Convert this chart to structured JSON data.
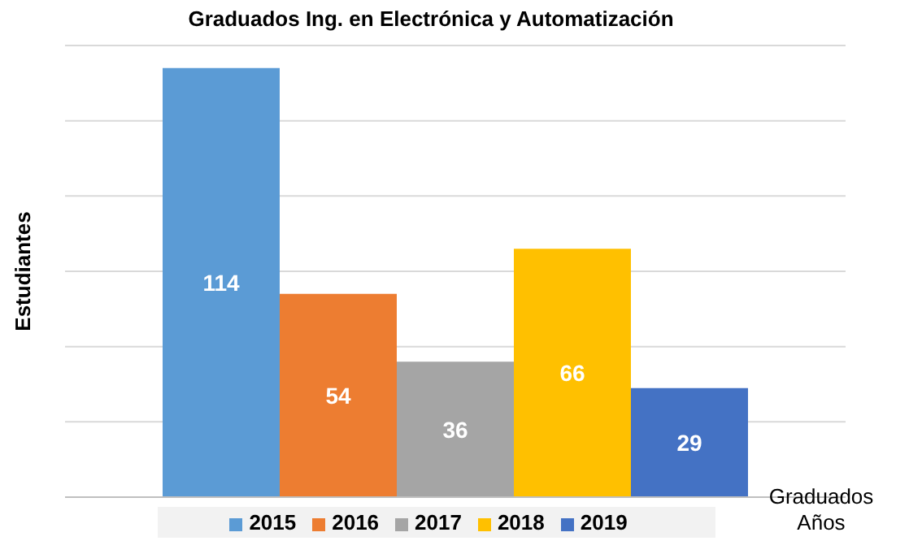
{
  "chart_data": {
    "type": "bar",
    "title": "Graduados Ing. en Electrónica y Automatización",
    "xlabel": "Graduados Años",
    "ylabel": "Estudiantes",
    "categories": [
      null
    ],
    "series": [
      {
        "name": "2015",
        "color": "#5b9bd5",
        "values": [
          114
        ]
      },
      {
        "name": "2016",
        "color": "#ed7d31",
        "values": [
          54
        ]
      },
      {
        "name": "2017",
        "color": "#a5a5a5",
        "values": [
          36
        ]
      },
      {
        "name": "2018",
        "color": "#ffc000",
        "values": [
          66
        ]
      },
      {
        "name": "2019",
        "color": "#4472c4",
        "values": [
          29
        ]
      }
    ],
    "tick_labels": false,
    "grid": "y",
    "legend": "bottom",
    "data_labels": true
  }
}
